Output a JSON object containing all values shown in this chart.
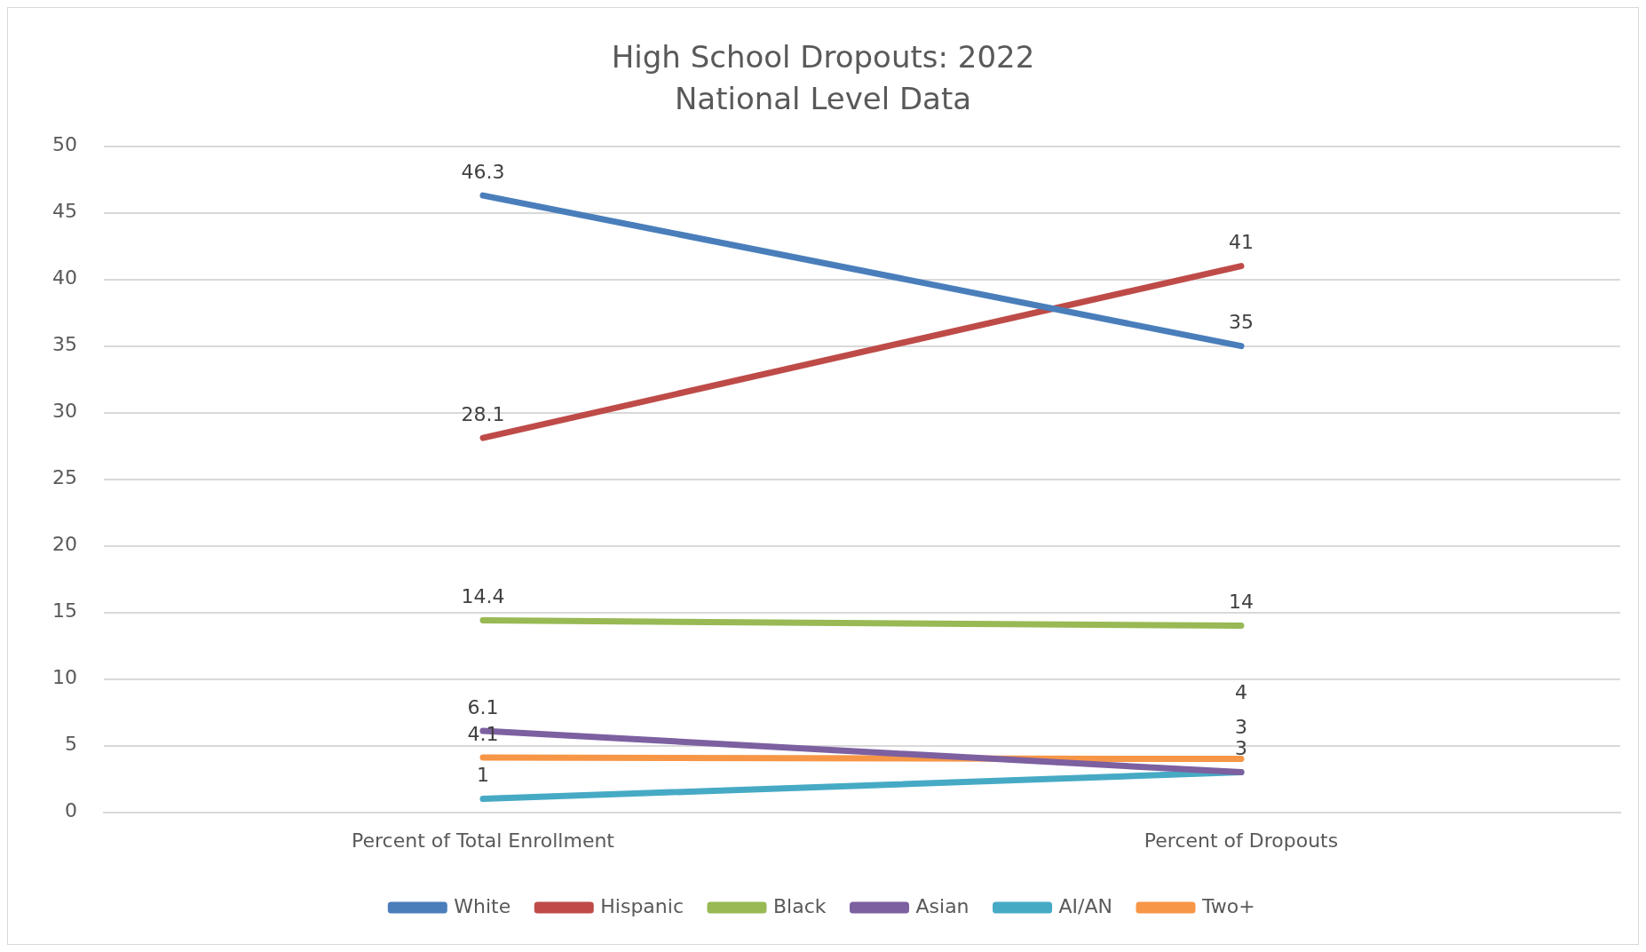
{
  "chart_data": {
    "type": "line",
    "title": "High School Dropouts: 2022",
    "subtitle": "National Level Data",
    "categories": [
      "Percent of Total Enrollment",
      "Percent of Dropouts"
    ],
    "series": [
      {
        "name": "White",
        "color": "#4a7ebb",
        "values": [
          46.3,
          35
        ]
      },
      {
        "name": "Hispanic",
        "color": "#be4b48",
        "values": [
          28.1,
          41
        ]
      },
      {
        "name": "Black",
        "color": "#98b954",
        "values": [
          14.4,
          14
        ]
      },
      {
        "name": "Asian",
        "color": "#7d60a0",
        "values": [
          6.1,
          3
        ]
      },
      {
        "name": "AI/AN",
        "color": "#46aac5",
        "values": [
          1,
          3
        ]
      },
      {
        "name": "Two+",
        "color": "#f79646",
        "values": [
          4.1,
          4
        ]
      }
    ],
    "ylim": [
      0,
      50
    ],
    "yticks": [
      0,
      5,
      10,
      15,
      20,
      25,
      30,
      35,
      40,
      45,
      50
    ],
    "grid": "y",
    "legend": "bottom",
    "data_labels": true,
    "marker": "none",
    "line_style": "solid"
  }
}
